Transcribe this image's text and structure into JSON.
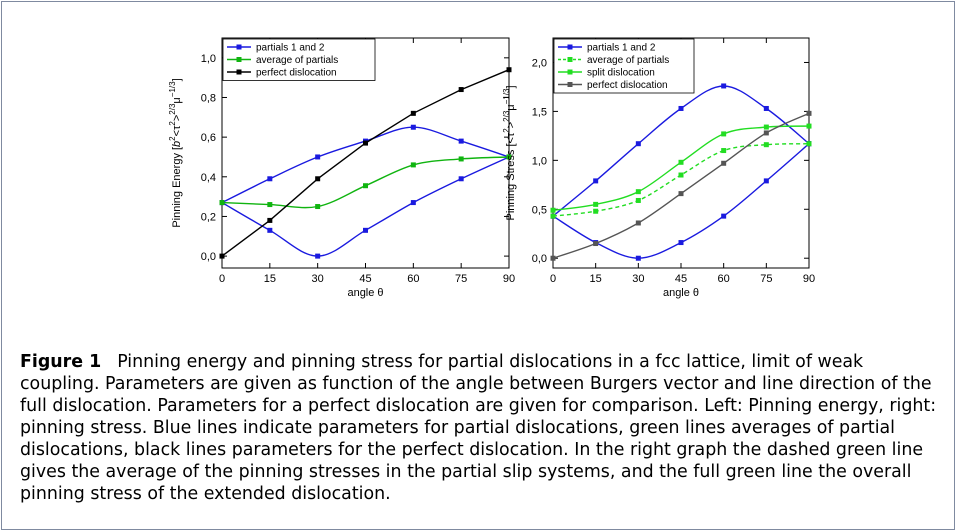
{
  "figure": {
    "label": "Figure 1",
    "caption": "Pinning energy and pinning stress for partial dislocations in a fcc lattice, limit of weak coupling. Parameters are given as function of the angle between Burgers vector and line direction of the full dislocation. Parameters for a perfect dislocation are given for comparison. Left: Pinning energy, right: pinning stress. Blue lines indicate parameters for partial dislocations, green lines averages of partial dislocations, black lines parameters for the perfect dislocation. In the right graph the dashed green line gives the average of the pinning stresses in the partial slip systems, and the full green line the overall pinning stress of the extended dislocation."
  },
  "chart_data": [
    {
      "type": "line",
      "xlabel": "angle θ",
      "ylabel_parts": [
        "Pinning Energy [",
        "b",
        "2",
        "<τ",
        "2",
        ">",
        "2/3",
        "μ",
        "−1/3",
        "]"
      ],
      "x": [
        0,
        15,
        30,
        45,
        60,
        75,
        90
      ],
      "xlim": [
        0,
        90
      ],
      "ylim": [
        -0.06,
        1.1
      ],
      "xticks": [
        "0",
        "15",
        "30",
        "45",
        "60",
        "75",
        "90"
      ],
      "yticks": [
        {
          "value": 0.0,
          "label": "0,0"
        },
        {
          "value": 0.2,
          "label": "0,2"
        },
        {
          "value": 0.4,
          "label": "0,4"
        },
        {
          "value": 0.6,
          "label": "0,6"
        },
        {
          "value": 0.8,
          "label": "0,8"
        },
        {
          "value": 1.0,
          "label": "1,0"
        }
      ],
      "grid": false,
      "legend_position": "top-left",
      "series": [
        {
          "name": "partials 1 and 2",
          "color": "#1a1adf",
          "dashed": false,
          "values": [
            0.27,
            0.39,
            0.5,
            0.58,
            0.65,
            0.58,
            0.5
          ]
        },
        {
          "name": "",
          "color": "#1a1adf",
          "dashed": false,
          "values": [
            0.27,
            0.13,
            0.0,
            0.13,
            0.27,
            0.39,
            0.5
          ]
        },
        {
          "name": "average of partials",
          "color": "#10b410",
          "dashed": false,
          "values": [
            0.27,
            0.26,
            0.25,
            0.355,
            0.46,
            0.49,
            0.5
          ]
        },
        {
          "name": "perfect dislocation",
          "color": "#000000",
          "dashed": false,
          "values": [
            0.0,
            0.18,
            0.39,
            0.57,
            0.72,
            0.84,
            0.94
          ]
        }
      ]
    },
    {
      "type": "line",
      "xlabel": "angle θ",
      "ylabel_parts": [
        "Pinning Stress [<τ",
        "2",
        ">",
        "2/3",
        "μ",
        "−1/3",
        "]"
      ],
      "x": [
        0,
        15,
        30,
        45,
        60,
        75,
        90
      ],
      "xlim": [
        0,
        90
      ],
      "ylim": [
        -0.1,
        2.25
      ],
      "xticks": [
        "0",
        "15",
        "30",
        "45",
        "60",
        "75",
        "90"
      ],
      "yticks": [
        {
          "value": 0.0,
          "label": "0,0"
        },
        {
          "value": 0.5,
          "label": "0,5"
        },
        {
          "value": 1.0,
          "label": "1,0"
        },
        {
          "value": 1.5,
          "label": "1,5"
        },
        {
          "value": 2.0,
          "label": "2,0"
        }
      ],
      "grid": false,
      "legend_position": "top-left",
      "series": [
        {
          "name": "partials 1 and 2",
          "color": "#1a1adf",
          "dashed": false,
          "values": [
            0.43,
            0.79,
            1.17,
            1.53,
            1.76,
            1.53,
            1.17
          ]
        },
        {
          "name": "",
          "color": "#1a1adf",
          "dashed": false,
          "values": [
            0.43,
            0.16,
            0.0,
            0.16,
            0.43,
            0.79,
            1.17
          ]
        },
        {
          "name": "average of partials",
          "color": "#22dd22",
          "dashed": true,
          "values": [
            0.43,
            0.48,
            0.59,
            0.85,
            1.1,
            1.16,
            1.17
          ]
        },
        {
          "name": "split dislocation",
          "color": "#22dd22",
          "dashed": false,
          "values": [
            0.49,
            0.55,
            0.68,
            0.98,
            1.27,
            1.34,
            1.35
          ]
        },
        {
          "name": "perfect dislocation",
          "color": "#555555",
          "dashed": false,
          "values": [
            0.0,
            0.15,
            0.36,
            0.66,
            0.97,
            1.28,
            1.48
          ]
        }
      ]
    }
  ]
}
